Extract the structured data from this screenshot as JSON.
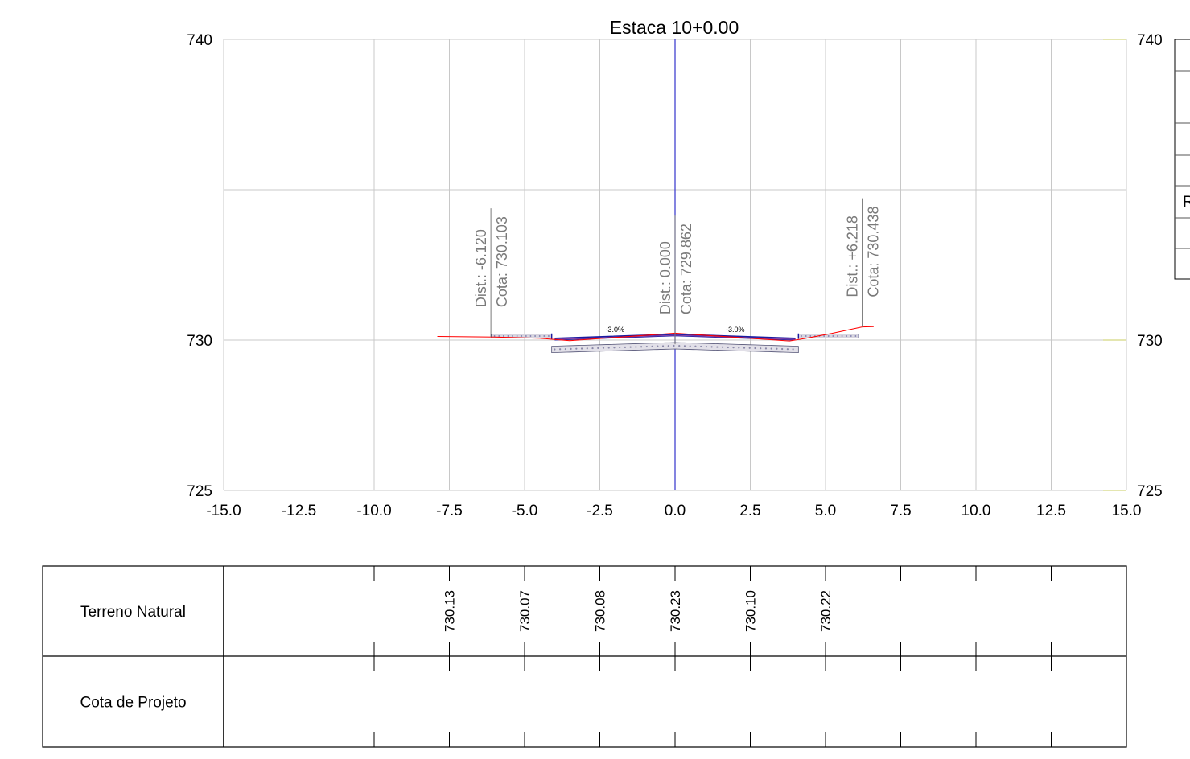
{
  "title": "Estaca 10+0.00",
  "chart_data": {
    "type": "cross-section",
    "x_ticks": [
      "-15.0",
      "-12.5",
      "-10.0",
      "-7.5",
      "-5.0",
      "-2.5",
      "0.0",
      "2.5",
      "5.0",
      "7.5",
      "10.0",
      "12.5",
      "15.0"
    ],
    "xlim": [
      -15,
      15
    ],
    "y_ticks_left": [
      "740",
      "730",
      "725"
    ],
    "y_ticks_right": [
      "740",
      "730",
      "725"
    ],
    "ylim": [
      725,
      740
    ],
    "grid": true,
    "points": [
      {
        "dist": -6.12,
        "cota": 730.103,
        "label_dist": "Dist.: -6.120",
        "label_cota": "Cota: 730.103"
      },
      {
        "dist": 0.0,
        "cota": 729.862,
        "label_dist": "Dist.: 0.000",
        "label_cota": "Cota: 729.862"
      },
      {
        "dist": 6.218,
        "cota": 730.438,
        "label_dist": "Dist.: +6.218",
        "label_cota": "Cota: 730.438"
      }
    ],
    "slopes": [
      {
        "x": -2.0,
        "label": "-3.0%"
      },
      {
        "x": 2.0,
        "label": "-3.0%"
      }
    ],
    "terrain": [
      [
        -7.9,
        730.12
      ],
      [
        -6.0,
        730.1
      ],
      [
        -4.5,
        730.06
      ],
      [
        -3.5,
        729.98
      ],
      [
        0.0,
        730.23
      ],
      [
        3.8,
        729.97
      ],
      [
        4.3,
        730.05
      ],
      [
        5.2,
        730.22
      ],
      [
        6.218,
        730.438
      ],
      [
        6.6,
        730.45
      ]
    ]
  },
  "table": {
    "rows": [
      {
        "title": "Terreno Natural",
        "values": [
          {
            "x": -7.5,
            "v": "730.13"
          },
          {
            "x": -5.0,
            "v": "730.07"
          },
          {
            "x": -2.5,
            "v": "730.08"
          },
          {
            "x": 0.0,
            "v": "730.23"
          },
          {
            "x": 2.5,
            "v": "730.10"
          },
          {
            "x": 5.0,
            "v": "730.22"
          }
        ]
      },
      {
        "title": "Cota de Projeto",
        "values": []
      }
    ]
  },
  "side_panel": {
    "visible_text": "R"
  },
  "colors": {
    "axis_line": "#3333cc",
    "terrain": "#ff0000",
    "pavement": "#1a1aa0",
    "grid": "#c8c8c8",
    "annotation": "#7a7a7a",
    "marker": "#c8cc60"
  }
}
